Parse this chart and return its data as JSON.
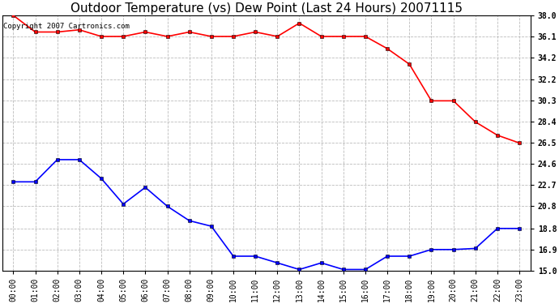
{
  "title": "Outdoor Temperature (vs) Dew Point (Last 24 Hours) 20071115",
  "copyright_text": "Copyright 2007 Cartronics.com",
  "x_labels": [
    "00:00",
    "01:00",
    "02:00",
    "03:00",
    "04:00",
    "05:00",
    "06:00",
    "07:00",
    "08:00",
    "09:00",
    "10:00",
    "11:00",
    "12:00",
    "13:00",
    "14:00",
    "15:00",
    "16:00",
    "17:00",
    "18:00",
    "19:00",
    "20:00",
    "21:00",
    "22:00",
    "23:00"
  ],
  "temp_data": [
    38.0,
    36.5,
    36.5,
    36.7,
    36.1,
    36.1,
    36.5,
    36.1,
    36.5,
    36.1,
    36.1,
    36.5,
    36.1,
    37.3,
    36.1,
    36.1,
    36.1,
    35.0,
    33.6,
    30.3,
    30.3,
    28.4,
    27.2,
    26.5
  ],
  "dew_data": [
    23.0,
    23.0,
    25.0,
    25.0,
    23.3,
    21.0,
    22.5,
    20.8,
    19.5,
    19.0,
    16.3,
    16.3,
    15.7,
    15.1,
    15.7,
    15.1,
    15.1,
    16.3,
    16.3,
    16.9,
    16.9,
    17.0,
    18.8,
    18.8
  ],
  "temp_color": "#ff0000",
  "dew_color": "#0000ff",
  "bg_color": "#ffffff",
  "plot_bg_color": "#ffffff",
  "grid_color": "#bbbbbb",
  "ylim": [
    15.0,
    38.0
  ],
  "yticks": [
    15.0,
    16.9,
    18.8,
    20.8,
    22.7,
    24.6,
    26.5,
    28.4,
    30.3,
    32.2,
    34.2,
    36.1,
    38.0
  ],
  "title_fontsize": 11,
  "tick_fontsize": 7,
  "copyright_fontsize": 6.5,
  "marker": "s",
  "marker_size": 2.5,
  "line_width": 1.2
}
